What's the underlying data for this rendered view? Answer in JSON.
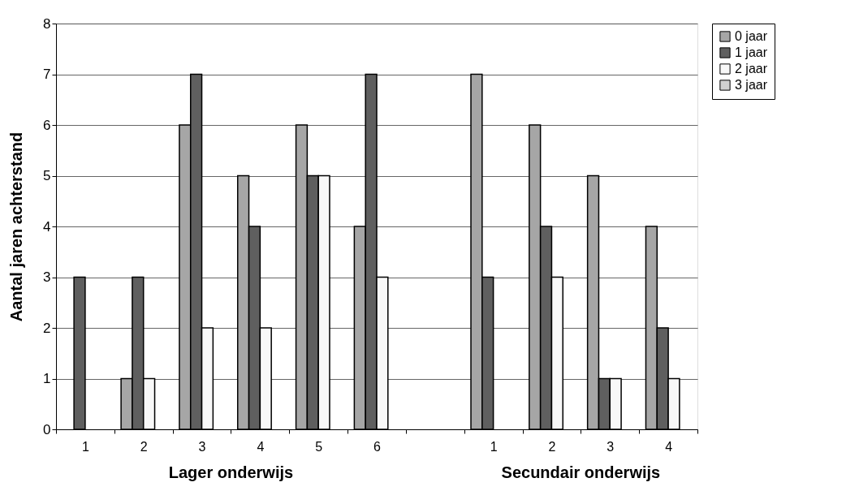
{
  "chart_data": {
    "type": "bar",
    "ylabel": "Aantal jaren achterstand",
    "categories": [
      "1",
      "2",
      "3",
      "4",
      "5",
      "6",
      null,
      "1",
      "2",
      "3",
      "4"
    ],
    "series": [
      {
        "name": "0 jaar",
        "color": "#a6a6a6",
        "values": [
          0,
          1,
          6,
          5,
          6,
          4,
          0,
          7,
          6,
          5,
          4
        ]
      },
      {
        "name": "1 jaar",
        "color": "#5f5f5f",
        "values": [
          3,
          3,
          7,
          4,
          5,
          7,
          0,
          3,
          4,
          1,
          2
        ]
      },
      {
        "name": "2 jaar",
        "color": "#f8f8f8",
        "values": [
          0,
          1,
          2,
          2,
          5,
          3,
          0,
          0,
          3,
          1,
          1
        ]
      },
      {
        "name": "3 jaar",
        "color": "#d0d0d0",
        "values": [
          0,
          0,
          0,
          0,
          0,
          0,
          0,
          0,
          0,
          0,
          0
        ]
      }
    ],
    "annotations": [
      "Lager onderwijs",
      "Secundair onderwijs"
    ],
    "ylim": [
      0,
      8
    ],
    "yticks": [
      0,
      1,
      2,
      3,
      4,
      5,
      6,
      7,
      8
    ],
    "grid": "y",
    "legend": "right"
  }
}
